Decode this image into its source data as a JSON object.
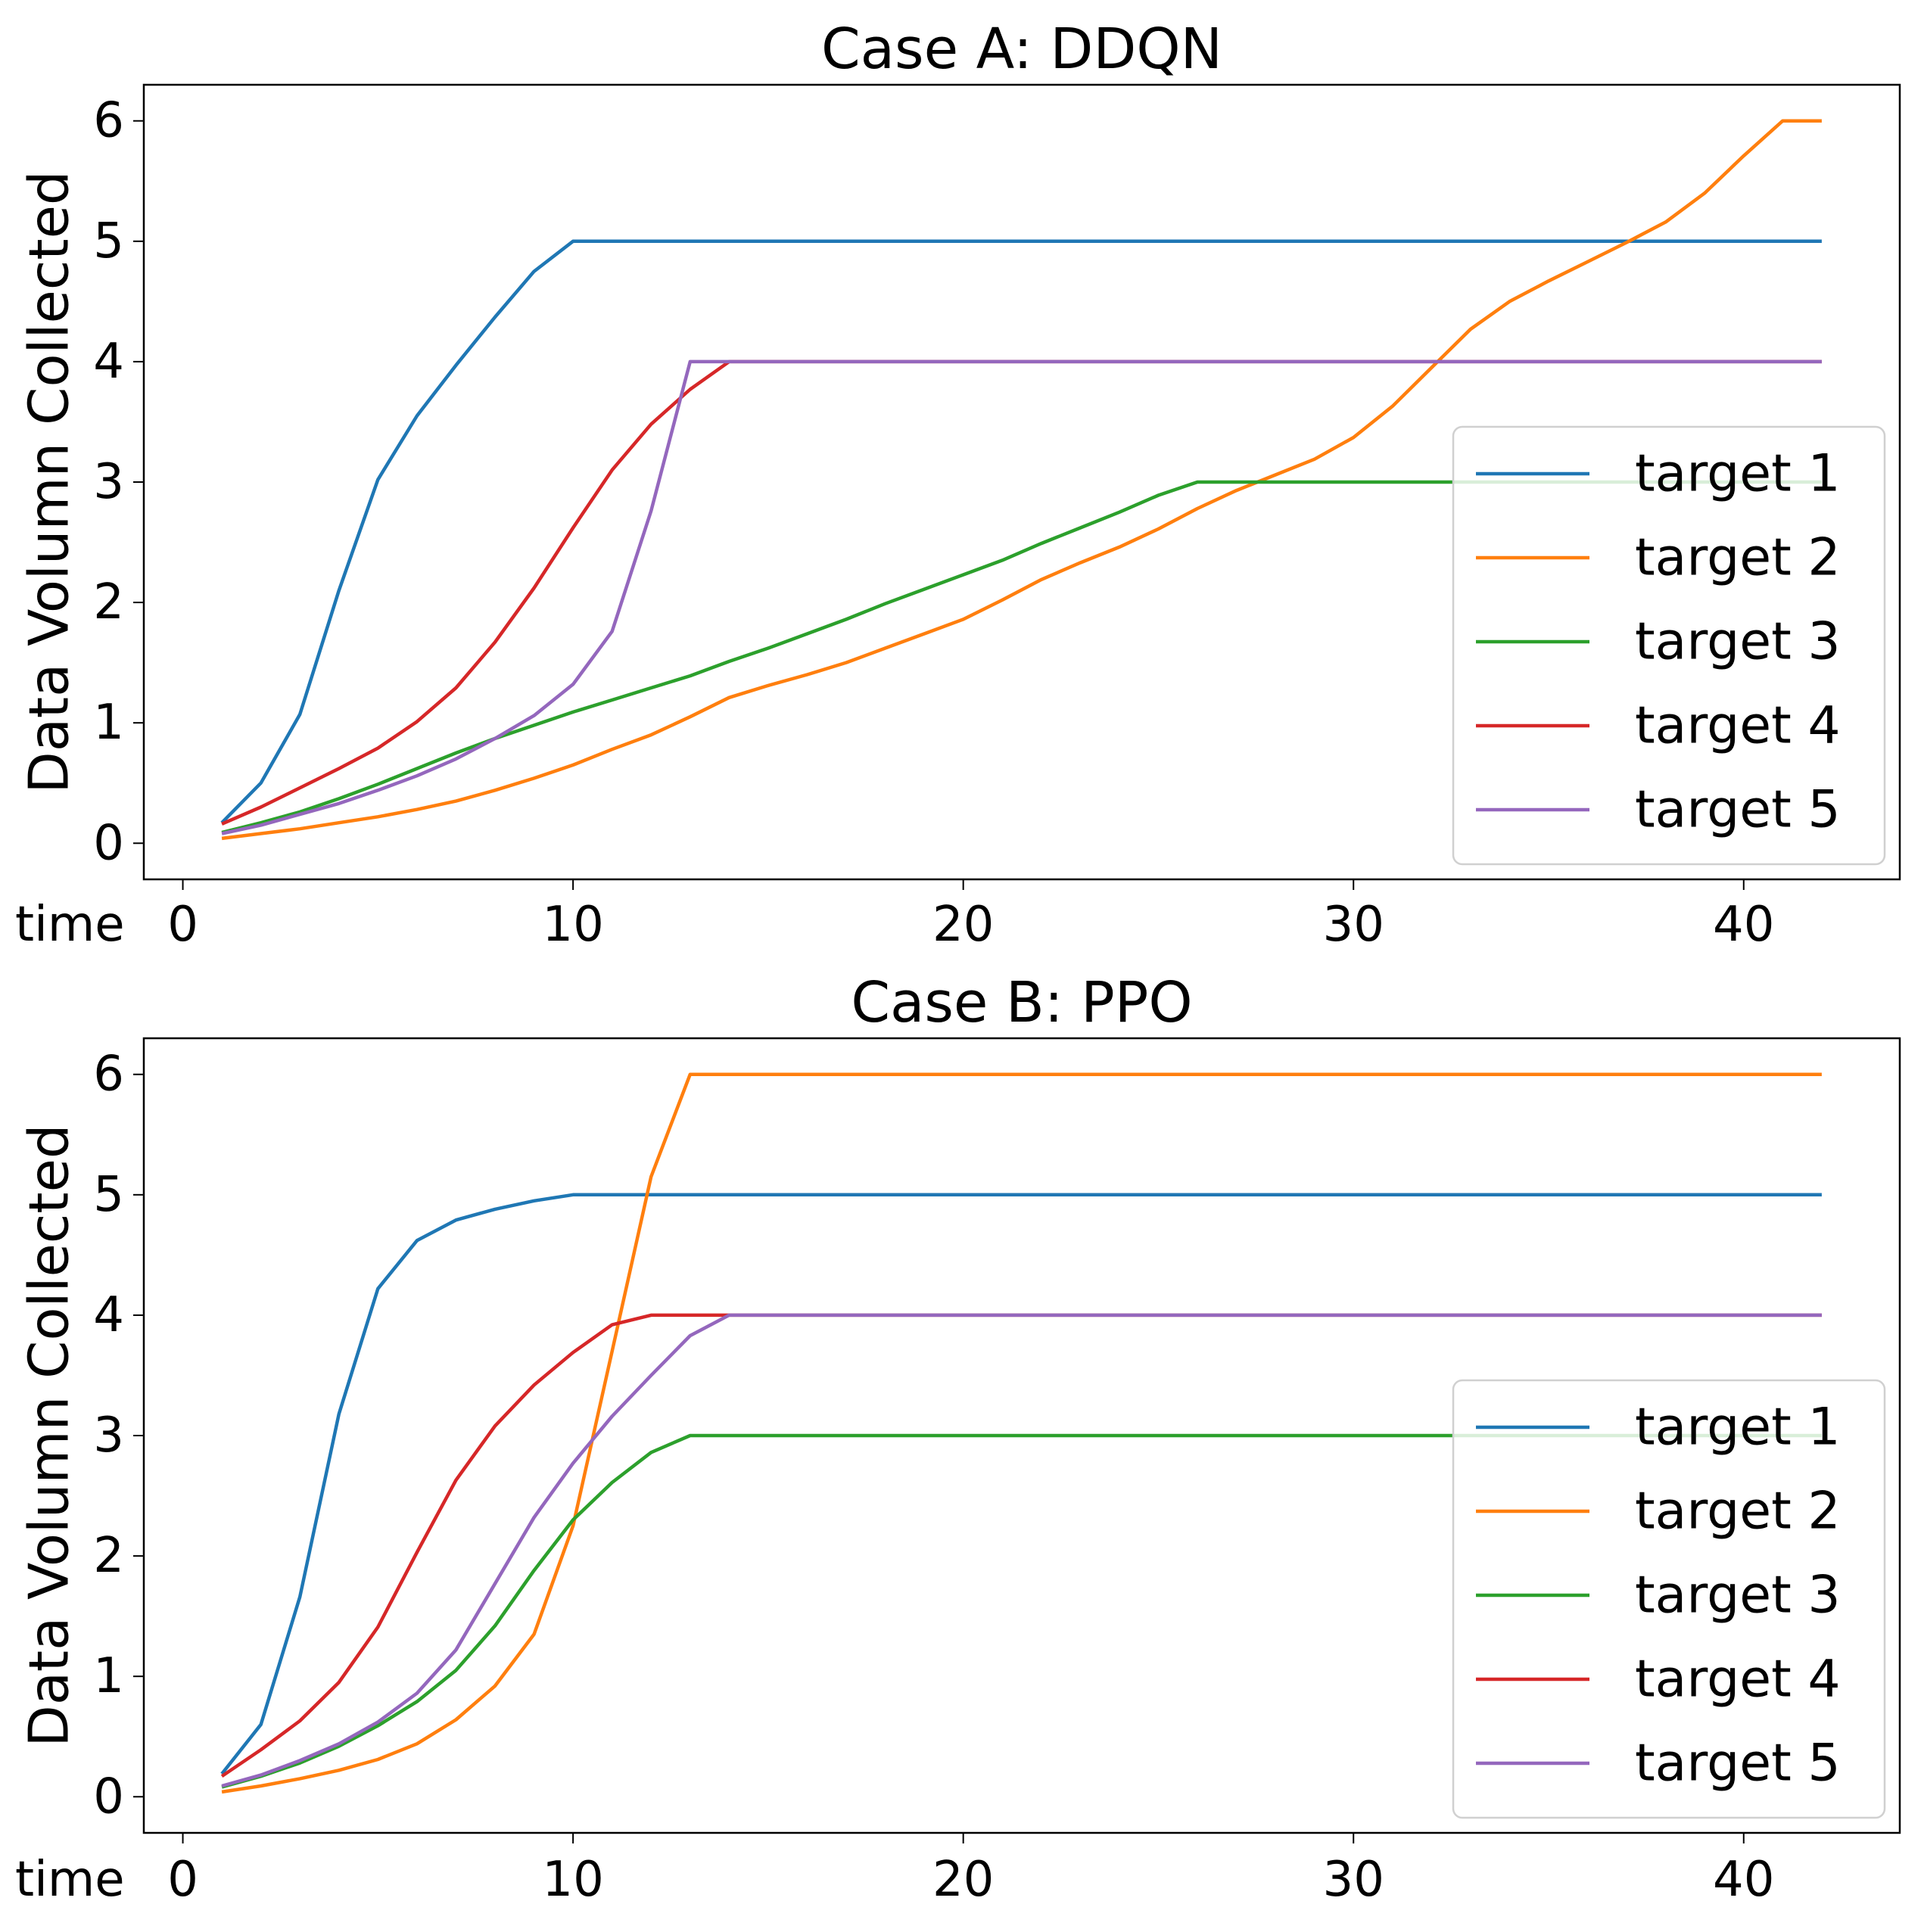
{
  "chart_data": [
    {
      "type": "line",
      "title": "Case A: DDQN",
      "xlabel": "time",
      "ylabel": "Data Volumn Collected",
      "xlim": [
        -1,
        44
      ],
      "ylim": [
        -0.3,
        6.3
      ],
      "xticks": [
        0,
        10,
        20,
        30,
        40
      ],
      "yticks": [
        0,
        1,
        2,
        3,
        4,
        5,
        6
      ],
      "legend": "lower-right",
      "grid": false,
      "x": [
        1,
        2,
        3,
        4,
        5,
        6,
        7,
        8,
        9,
        10,
        11,
        12,
        13,
        14,
        15,
        16,
        17,
        18,
        19,
        20,
        21,
        22,
        23,
        24,
        25,
        26,
        27,
        28,
        29,
        30,
        31,
        32,
        33,
        34,
        35,
        36,
        37,
        38,
        39,
        40,
        41,
        42
      ],
      "series": [
        {
          "name": "target 1",
          "color": "#1f77b4",
          "values": [
            0.17,
            0.5,
            1.07,
            2.1,
            3.02,
            3.55,
            3.97,
            4.37,
            4.75,
            5,
            5,
            5,
            5,
            5,
            5,
            5,
            5,
            5,
            5,
            5,
            5,
            5,
            5,
            5,
            5,
            5,
            5,
            5,
            5,
            5,
            5,
            5,
            5,
            5,
            5,
            5,
            5,
            5,
            5,
            5,
            5,
            5
          ]
        },
        {
          "name": "target 2",
          "color": "#ff7f0e",
          "values": [
            0.04,
            0.08,
            0.12,
            0.17,
            0.22,
            0.28,
            0.35,
            0.44,
            0.54,
            0.65,
            0.78,
            0.9,
            1.05,
            1.21,
            1.31,
            1.4,
            1.5,
            1.62,
            1.74,
            1.86,
            2.02,
            2.19,
            2.33,
            2.46,
            2.61,
            2.78,
            2.93,
            3.06,
            3.19,
            3.37,
            3.63,
            3.95,
            4.27,
            4.5,
            4.67,
            4.83,
            4.99,
            5.16,
            5.4,
            5.71,
            6,
            6
          ]
        },
        {
          "name": "target 3",
          "color": "#2ca02c",
          "values": [
            0.09,
            0.17,
            0.26,
            0.37,
            0.49,
            0.62,
            0.75,
            0.87,
            0.98,
            1.09,
            1.19,
            1.29,
            1.39,
            1.51,
            1.62,
            1.74,
            1.86,
            1.99,
            2.11,
            2.23,
            2.35,
            2.49,
            2.62,
            2.75,
            2.89,
            3,
            3,
            3,
            3,
            3,
            3,
            3,
            3,
            3,
            3,
            3,
            3,
            3,
            3,
            3,
            3,
            3
          ]
        },
        {
          "name": "target 4",
          "color": "#d62728",
          "values": [
            0.16,
            0.3,
            0.46,
            0.62,
            0.79,
            1.01,
            1.29,
            1.67,
            2.12,
            2.62,
            3.1,
            3.48,
            3.77,
            4,
            4,
            4,
            4,
            4,
            4,
            4,
            4,
            4,
            4,
            4,
            4,
            4,
            4,
            4,
            4,
            4,
            4,
            4,
            4,
            4,
            4,
            4,
            4,
            4,
            4,
            4,
            4,
            4
          ]
        },
        {
          "name": "target 5",
          "color": "#9467bd",
          "values": [
            0.08,
            0.15,
            0.24,
            0.33,
            0.44,
            0.56,
            0.7,
            0.87,
            1.06,
            1.32,
            1.76,
            2.76,
            4,
            4,
            4,
            4,
            4,
            4,
            4,
            4,
            4,
            4,
            4,
            4,
            4,
            4,
            4,
            4,
            4,
            4,
            4,
            4,
            4,
            4,
            4,
            4,
            4,
            4,
            4,
            4,
            4,
            4
          ]
        }
      ]
    },
    {
      "type": "line",
      "title": "Case B: PPO",
      "xlabel": "time",
      "ylabel": "Data Volumn Collected",
      "xlim": [
        -1,
        44
      ],
      "ylim": [
        -0.3,
        6.3
      ],
      "xticks": [
        0,
        10,
        20,
        30,
        40
      ],
      "yticks": [
        0,
        1,
        2,
        3,
        4,
        5,
        6
      ],
      "legend": "lower-right",
      "grid": false,
      "x": [
        1,
        2,
        3,
        4,
        5,
        6,
        7,
        8,
        9,
        10,
        11,
        12,
        13,
        14,
        15,
        16,
        17,
        18,
        19,
        20,
        21,
        22,
        23,
        24,
        25,
        26,
        27,
        28,
        29,
        30,
        31,
        32,
        33,
        34,
        35,
        36,
        37,
        38,
        39,
        40,
        41,
        42
      ],
      "series": [
        {
          "name": "target 1",
          "color": "#1f77b4",
          "values": [
            0.19,
            0.6,
            1.66,
            3.18,
            4.22,
            4.62,
            4.79,
            4.88,
            4.95,
            5,
            5,
            5,
            5,
            5,
            5,
            5,
            5,
            5,
            5,
            5,
            5,
            5,
            5,
            5,
            5,
            5,
            5,
            5,
            5,
            5,
            5,
            5,
            5,
            5,
            5,
            5,
            5,
            5,
            5,
            5,
            5,
            5
          ]
        },
        {
          "name": "target 2",
          "color": "#ff7f0e",
          "values": [
            0.04,
            0.09,
            0.15,
            0.22,
            0.31,
            0.44,
            0.64,
            0.92,
            1.35,
            2.25,
            3.7,
            5.15,
            6,
            6,
            6,
            6,
            6,
            6,
            6,
            6,
            6,
            6,
            6,
            6,
            6,
            6,
            6,
            6,
            6,
            6,
            6,
            6,
            6,
            6,
            6,
            6,
            6,
            6,
            6,
            6,
            6,
            6
          ]
        },
        {
          "name": "target 3",
          "color": "#2ca02c",
          "values": [
            0.08,
            0.17,
            0.28,
            0.42,
            0.59,
            0.79,
            1.05,
            1.42,
            1.88,
            2.3,
            2.61,
            2.86,
            3,
            3,
            3,
            3,
            3,
            3,
            3,
            3,
            3,
            3,
            3,
            3,
            3,
            3,
            3,
            3,
            3,
            3,
            3,
            3,
            3,
            3,
            3,
            3,
            3,
            3,
            3,
            3,
            3,
            3
          ]
        },
        {
          "name": "target 4",
          "color": "#d62728",
          "values": [
            0.17,
            0.39,
            0.63,
            0.95,
            1.41,
            2.03,
            2.63,
            3.08,
            3.42,
            3.69,
            3.92,
            4,
            4,
            4,
            4,
            4,
            4,
            4,
            4,
            4,
            4,
            4,
            4,
            4,
            4,
            4,
            4,
            4,
            4,
            4,
            4,
            4,
            4,
            4,
            4,
            4,
            4,
            4,
            4,
            4,
            4,
            4
          ]
        },
        {
          "name": "target 5",
          "color": "#9467bd",
          "values": [
            0.09,
            0.18,
            0.3,
            0.44,
            0.62,
            0.86,
            1.22,
            1.77,
            2.32,
            2.77,
            3.16,
            3.5,
            3.83,
            4,
            4,
            4,
            4,
            4,
            4,
            4,
            4,
            4,
            4,
            4,
            4,
            4,
            4,
            4,
            4,
            4,
            4,
            4,
            4,
            4,
            4,
            4,
            4,
            4,
            4,
            4,
            4,
            4
          ]
        }
      ]
    }
  ]
}
